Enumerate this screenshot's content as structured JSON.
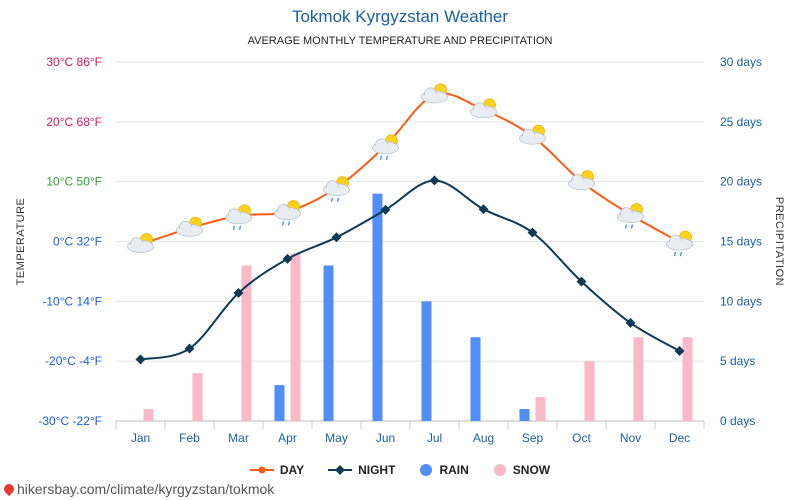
{
  "title": "Tokmok Kyrgyzstan Weather",
  "subtitle": "AVERAGE MONTHLY TEMPERATURE AND PRECIPITATION",
  "footer_url": "hikersbay.com/climate/kyrgyzstan/tokmok",
  "colors": {
    "day": "#ff5a14",
    "night": "#0e3a55",
    "rain": "#4f8ff7",
    "snow": "#f9b9c8",
    "grid": "#e4e4e4",
    "axis_blue": "#1a5f9e"
  },
  "chart_data": {
    "type": "line",
    "categories": [
      "Jan",
      "Feb",
      "Mar",
      "Apr",
      "May",
      "Jun",
      "Jul",
      "Aug",
      "Sep",
      "Oct",
      "Nov",
      "Dec"
    ],
    "series": [
      {
        "name": "DAY",
        "type": "line",
        "axis": "left",
        "values": [
          -0.5,
          2.2,
          4.3,
          5.0,
          9.0,
          16.0,
          24.5,
          22.0,
          17.6,
          10.0,
          4.5,
          -0.1
        ]
      },
      {
        "name": "NIGHT",
        "type": "line",
        "axis": "left",
        "values": [
          -19.7,
          -17.9,
          -8.6,
          -2.9,
          0.7,
          5.3,
          10.2,
          5.4,
          1.5,
          -6.7,
          -13.6,
          -18.3
        ]
      },
      {
        "name": "RAIN",
        "type": "bar",
        "axis": "right",
        "unit": "days",
        "values": [
          0,
          0,
          0,
          3,
          13,
          19,
          10,
          7,
          1,
          0,
          0,
          0
        ]
      },
      {
        "name": "SNOW",
        "type": "bar",
        "axis": "right",
        "unit": "days",
        "values": [
          1,
          4,
          13,
          14,
          0,
          0,
          0,
          0,
          2,
          5,
          7,
          7
        ]
      }
    ],
    "weather_icons": [
      "sun-cloud",
      "sun-cloud",
      "sun-cloud-rain",
      "sun-cloud-rain",
      "sun-cloud-rain",
      "sun-cloud-rain",
      "sun-cloud",
      "sun-cloud",
      "sun-cloud",
      "sun-cloud",
      "sun-cloud-rain",
      "sun-cloud-rain"
    ],
    "left_axis": {
      "title": "TEMPERATURE",
      "range": [
        -30,
        30
      ],
      "ticks": [
        {
          "value": 30,
          "label": "30°C 86°F",
          "color": "#e0115f"
        },
        {
          "value": 20,
          "label": "20°C 68°F",
          "color": "#e0115f"
        },
        {
          "value": 10,
          "label": "10°C 50°F",
          "color": "#2aa52a"
        },
        {
          "value": 0,
          "label": "0°C 32°F",
          "color": "#1a5fd6"
        },
        {
          "value": -10,
          "label": "-10°C 14°F",
          "color": "#1a5fd6"
        },
        {
          "value": -20,
          "label": "-20°C -4°F",
          "color": "#1a5fd6"
        },
        {
          "value": -30,
          "label": "-30°C -22°F",
          "color": "#1a5fd6"
        }
      ]
    },
    "right_axis": {
      "title": "PRECIPITATION",
      "range": [
        0,
        30
      ],
      "ticks": [
        {
          "value": 30,
          "label": "30 days"
        },
        {
          "value": 25,
          "label": "25 days"
        },
        {
          "value": 20,
          "label": "20 days"
        },
        {
          "value": 15,
          "label": "15 days"
        },
        {
          "value": 10,
          "label": "10 days"
        },
        {
          "value": 5,
          "label": "5 days"
        },
        {
          "value": 0,
          "label": "0 days"
        }
      ]
    },
    "grid": true,
    "legend": {
      "position": "bottom",
      "items": [
        "DAY",
        "NIGHT",
        "RAIN",
        "SNOW"
      ]
    }
  }
}
